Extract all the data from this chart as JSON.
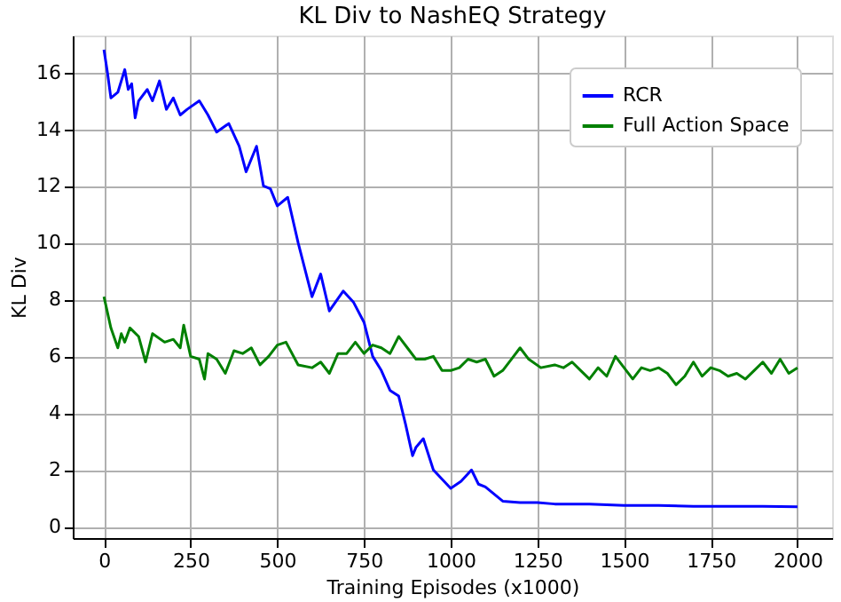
{
  "chart_data": {
    "type": "line",
    "title": "KL Div to NashEQ Strategy",
    "xlabel": "Training Episodes (x1000)",
    "ylabel": "KL Div",
    "xlim": [
      -90,
      2100
    ],
    "xticks": [
      0,
      250,
      500,
      750,
      1000,
      1250,
      1500,
      1750,
      2000
    ],
    "ylim": [
      -0.4,
      17.3
    ],
    "yticks": [
      0,
      2,
      4,
      6,
      8,
      10,
      12,
      14,
      16
    ],
    "grid": true,
    "legend": "top right",
    "line_style": "solid",
    "series": [
      {
        "name": "RCR",
        "color": "#0000ff",
        "x": [
          0,
          10,
          20,
          40,
          60,
          70,
          80,
          90,
          100,
          125,
          140,
          160,
          180,
          200,
          220,
          240,
          275,
          300,
          325,
          360,
          390,
          410,
          440,
          460,
          480,
          500,
          530,
          560,
          600,
          625,
          650,
          690,
          720,
          750,
          775,
          800,
          825,
          850,
          870,
          890,
          900,
          921,
          950,
          1000,
          1030,
          1060,
          1080,
          1100,
          1150,
          1200,
          1250,
          1300,
          1400,
          1500,
          1600,
          1700,
          1800,
          1900,
          2000
        ],
        "values": [
          16.8,
          16.0,
          15.1,
          15.3,
          16.1,
          15.4,
          15.6,
          14.4,
          15.0,
          15.4,
          15.0,
          15.7,
          14.7,
          15.1,
          14.5,
          14.7,
          15.0,
          14.5,
          13.9,
          14.2,
          13.4,
          12.5,
          13.4,
          12.0,
          11.9,
          11.3,
          11.6,
          10.0,
          8.1,
          8.9,
          7.6,
          8.3,
          7.9,
          7.2,
          6.0,
          5.5,
          4.8,
          4.6,
          3.6,
          2.5,
          2.8,
          3.1,
          2.0,
          1.35,
          1.6,
          2.0,
          1.5,
          1.4,
          0.9,
          0.85,
          0.85,
          0.8,
          0.8,
          0.75,
          0.75,
          0.72,
          0.72,
          0.72,
          0.7
        ]
      },
      {
        "name": "Full Action Space",
        "color": "#008000",
        "x": [
          0,
          20,
          40,
          50,
          60,
          75,
          100,
          120,
          140,
          175,
          200,
          220,
          230,
          250,
          275,
          290,
          300,
          325,
          350,
          375,
          400,
          425,
          450,
          475,
          500,
          525,
          560,
          600,
          625,
          650,
          675,
          700,
          725,
          750,
          775,
          800,
          825,
          850,
          875,
          900,
          925,
          950,
          975,
          1000,
          1025,
          1050,
          1075,
          1100,
          1125,
          1150,
          1175,
          1200,
          1225,
          1260,
          1300,
          1325,
          1350,
          1375,
          1400,
          1425,
          1450,
          1475,
          1500,
          1525,
          1550,
          1575,
          1600,
          1625,
          1650,
          1675,
          1700,
          1725,
          1750,
          1775,
          1800,
          1825,
          1850,
          1875,
          1900,
          1925,
          1950,
          1975,
          2000
        ],
        "values": [
          8.1,
          7.0,
          6.3,
          6.8,
          6.5,
          7.0,
          6.7,
          5.8,
          6.8,
          6.5,
          6.6,
          6.3,
          7.1,
          6.0,
          5.9,
          5.2,
          6.1,
          5.9,
          5.4,
          6.2,
          6.1,
          6.3,
          5.7,
          6.0,
          6.4,
          6.5,
          5.7,
          5.6,
          5.8,
          5.4,
          6.1,
          6.1,
          6.5,
          6.1,
          6.4,
          6.3,
          6.1,
          6.7,
          6.3,
          5.9,
          5.9,
          6.0,
          5.5,
          5.5,
          5.6,
          5.9,
          5.8,
          5.9,
          5.3,
          5.5,
          5.9,
          6.3,
          5.9,
          5.6,
          5.7,
          5.6,
          5.8,
          5.5,
          5.2,
          5.6,
          5.3,
          6.0,
          5.6,
          5.2,
          5.6,
          5.5,
          5.6,
          5.4,
          5.0,
          5.3,
          5.8,
          5.3,
          5.6,
          5.5,
          5.3,
          5.4,
          5.2,
          5.5,
          5.8,
          5.4,
          5.9,
          5.4,
          5.6
        ]
      }
    ]
  }
}
